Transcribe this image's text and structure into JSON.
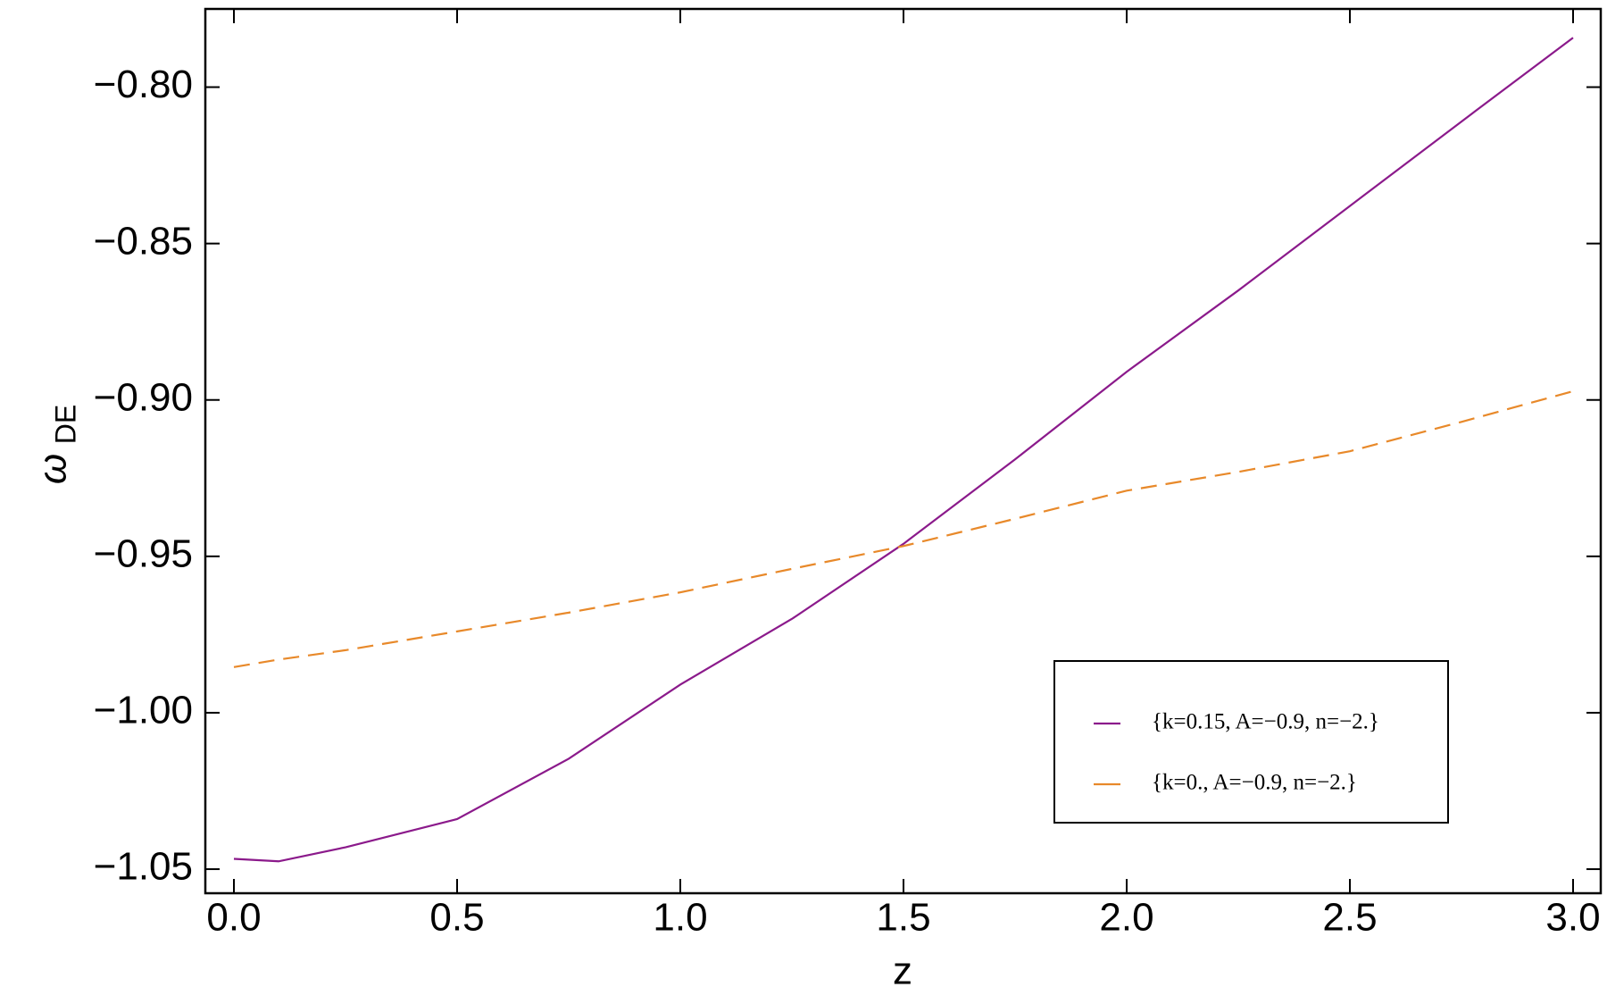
{
  "chart_data": {
    "type": "line",
    "xlabel": "z",
    "ylabel": "ω",
    "ylabel_sub": "DE",
    "x": [
      0,
      0.1,
      0.25,
      0.5,
      0.75,
      1.0,
      1.25,
      1.5,
      1.75,
      2.0,
      2.25,
      2.5,
      2.75,
      3.0
    ],
    "series": [
      {
        "name": "{k=0.15, A=−0.9, n=−2.}",
        "color": "#8b1a8b",
        "dash": "solid",
        "values": [
          -1.0467,
          -1.0475,
          -1.043,
          -1.034,
          -1.0147,
          -0.991,
          -0.97,
          -0.946,
          -0.919,
          -0.891,
          -0.865,
          -0.838,
          -0.811,
          -0.7842
        ]
      },
      {
        "name": "{k=0., A=−0.9, n=−2.}",
        "color": "#e8892a",
        "dash": "dashed",
        "values": [
          -0.9854,
          -0.983,
          -0.98,
          -0.974,
          -0.968,
          -0.9615,
          -0.954,
          -0.9467,
          -0.938,
          -0.929,
          -0.923,
          -0.9164,
          -0.907,
          -0.8972
        ]
      }
    ],
    "xlim": [
      -0.064,
      3.062
    ],
    "ylim": [
      -1.0577,
      -0.775
    ],
    "xticks": [
      {
        "value": 0,
        "label": "0.0"
      },
      0.5,
      {
        "value": 1,
        "label": "1.0"
      },
      1.5,
      {
        "value": 2,
        "label": "2.0"
      },
      2.5,
      {
        "value": 3,
        "label": "3.0"
      }
    ],
    "yticks": [
      {
        "value": -1.05,
        "label": "−1.05"
      },
      {
        "value": -1.0,
        "label": "−1.00"
      },
      {
        "value": -0.95,
        "label": "−0.95"
      },
      {
        "value": -0.9,
        "label": "−0.90"
      },
      {
        "value": -0.85,
        "label": "−0.85"
      },
      {
        "value": -0.8,
        "label": "−0.80"
      }
    ],
    "grid": false,
    "legend": "lower-right"
  }
}
